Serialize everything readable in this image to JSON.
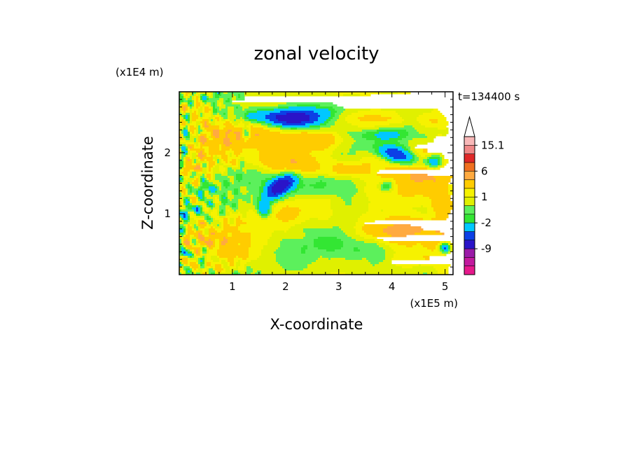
{
  "chart_data": {
    "type": "heatmap",
    "title": "zonal velocity",
    "xlabel": "X-coordinate",
    "ylabel": "Z-coordinate",
    "x_unit": "(x1E5 m)",
    "y_unit": "(x1E4 m)",
    "time_label": "t=134400 s",
    "xlim": [
      0,
      5.15
    ],
    "ylim": [
      0,
      3.0
    ],
    "x_ticks": [
      "1",
      "2",
      "3",
      "4",
      "5"
    ],
    "y_ticks": [
      "1",
      "2"
    ],
    "x_tick_values": [
      1,
      2,
      3,
      4,
      5
    ],
    "y_tick_values": [
      1,
      2
    ],
    "colorbar": {
      "labels": [
        "15.1",
        "6",
        "1",
        "-2",
        "-9"
      ],
      "label_values": [
        15.1,
        6,
        1,
        -2,
        -9
      ],
      "levels": [
        -15,
        -12,
        -9,
        -6,
        -4,
        -2,
        -1,
        0,
        1,
        2,
        4,
        6,
        9,
        12,
        15.1
      ],
      "colors": [
        "#e6198c",
        "#c21a9e",
        "#9b1aa8",
        "#2a14c8",
        "#0c40e6",
        "#00c8ff",
        "#33e633",
        "#5cf05c",
        "#e0f000",
        "#f6f200",
        "#ffcc00",
        "#ffaa40",
        "#f07020",
        "#e02828",
        "#f08888",
        "#f8b8b8"
      ],
      "extend": "max"
    },
    "field": {
      "background_value": 0.6,
      "features": [
        {
          "x": 2.15,
          "z": 2.55,
          "a": -9.5,
          "sx": 0.38,
          "sz": 0.11
        },
        {
          "x": 1.25,
          "z": 2.3,
          "a": -5,
          "sx": 0.07,
          "sz": 0.08
        },
        {
          "x": 1.9,
          "z": 1.45,
          "a": -8,
          "sx": 0.22,
          "sz": 0.1,
          "rot": -0.55
        },
        {
          "x": 1.6,
          "z": 1.08,
          "a": -5,
          "sx": 0.09,
          "sz": 0.1
        },
        {
          "x": 4.15,
          "z": 1.95,
          "a": -7.5,
          "sx": 0.3,
          "sz": 0.1,
          "rot": 0.25
        },
        {
          "x": 4.8,
          "z": 1.85,
          "a": -6.5,
          "sx": 0.12,
          "sz": 0.08
        },
        {
          "x": 3.9,
          "z": 1.45,
          "a": -3.5,
          "sx": 0.1,
          "sz": 0.06
        },
        {
          "x": 4.55,
          "z": 1.58,
          "a": 4,
          "sx": 0.38,
          "sz": 0.28
        },
        {
          "x": 4.45,
          "z": 0.72,
          "a": 3.5,
          "sx": 0.6,
          "sz": 0.16
        },
        {
          "x": 1.1,
          "z": 2.3,
          "a": 2.8,
          "sx": 0.5,
          "sz": 0.16
        },
        {
          "x": 0.25,
          "z": 2.68,
          "a": 2.5,
          "sx": 0.28,
          "sz": 0.14
        },
        {
          "x": 2.6,
          "z": 2.18,
          "a": 3,
          "sx": 0.45,
          "sz": 0.12
        },
        {
          "x": 2.75,
          "z": 1.72,
          "a": 3,
          "sx": 0.55,
          "sz": 0.12
        },
        {
          "x": 3.05,
          "z": 1.6,
          "a": -1.2,
          "sx": 0.9,
          "sz": 0.12
        },
        {
          "x": 2.85,
          "z": 1.35,
          "a": -1.3,
          "sx": 0.6,
          "sz": 0.22
        },
        {
          "x": 3.3,
          "z": 0.45,
          "a": -1.4,
          "sx": 0.55,
          "sz": 0.2
        },
        {
          "x": 3.8,
          "z": 0.3,
          "a": -1.4,
          "sx": 0.3,
          "sz": 0.18
        },
        {
          "x": 2.45,
          "z": 0.65,
          "a": -1.2,
          "sx": 0.5,
          "sz": 0.22
        },
        {
          "x": 3.75,
          "z": 0.75,
          "a": 2.3,
          "sx": 0.5,
          "sz": 0.18
        },
        {
          "x": 2.05,
          "z": 0.9,
          "a": 1.8,
          "sx": 0.35,
          "sz": 0.18
        },
        {
          "x": 1.95,
          "z": 1.85,
          "a": 3.2,
          "sx": 0.4,
          "sz": 0.12
        },
        {
          "x": 2.6,
          "z": 2.7,
          "a": -2.2,
          "sx": 0.5,
          "sz": 0.08
        },
        {
          "x": 3.7,
          "z": 2.55,
          "a": 2.5,
          "sx": 0.35,
          "sz": 0.1
        },
        {
          "x": 4.7,
          "z": 2.55,
          "a": 3,
          "sx": 0.25,
          "sz": 0.12
        },
        {
          "x": 3.85,
          "z": 2.3,
          "a": -2.5,
          "sx": 0.3,
          "sz": 0.06
        },
        {
          "x": 1.5,
          "z": 2.6,
          "a": -2.2,
          "sx": 0.3,
          "sz": 0.08
        },
        {
          "x": 0.1,
          "z": 0.35,
          "a": -7,
          "sx": 0.05,
          "sz": 0.05
        },
        {
          "x": 5.0,
          "z": 0.45,
          "a": -7,
          "sx": 0.08,
          "sz": 0.06
        },
        {
          "x": 4.95,
          "z": 1.2,
          "a": 2.5,
          "sx": 0.15,
          "sz": 0.2
        },
        {
          "x": 1.15,
          "z": 0.35,
          "a": 1.8,
          "sx": 0.25,
          "sz": 0.12
        },
        {
          "x": 0.6,
          "z": 0.55,
          "a": 1.2,
          "sx": 0.4,
          "sz": 0.2
        }
      ]
    }
  }
}
